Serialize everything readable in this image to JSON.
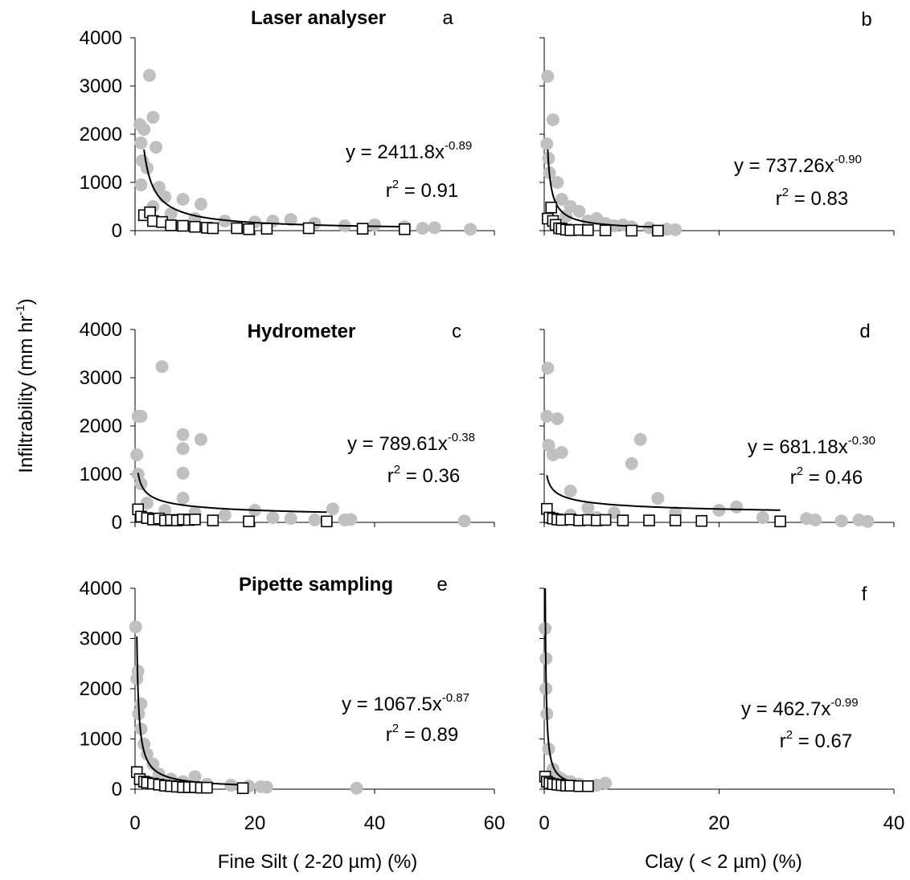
{
  "y_label": {
    "text": "Infiltrability (mm hr",
    "exponent": "-1",
    "close": ")"
  },
  "chart_data": [
    {
      "type": "scatter",
      "title": "Laser analyser",
      "label": "a",
      "xlim": [
        0,
        60
      ],
      "xticks": [
        0,
        20,
        40,
        60
      ],
      "xtick_labels": false,
      "ylim": [
        0,
        4000
      ],
      "yticks": [
        0,
        1000,
        2000,
        3000,
        4000
      ],
      "ytick_labels": true,
      "series": [
        {
          "marker": "circle",
          "color": "#c0c0c0",
          "x": [
            0.8,
            1,
            1.2,
            1,
            1.5,
            2.4,
            3,
            3.5,
            2,
            4,
            5,
            8,
            11,
            3,
            6,
            10,
            15,
            20,
            23,
            26,
            30,
            35,
            40,
            45,
            48,
            50,
            56
          ],
          "values": [
            2200,
            1820,
            1450,
            950,
            2100,
            3220,
            2350,
            1730,
            1300,
            900,
            700,
            650,
            550,
            500,
            350,
            250,
            200,
            180,
            200,
            230,
            150,
            100,
            120,
            80,
            50,
            60,
            30
          ]
        },
        {
          "marker": "square",
          "color": "#000000",
          "x": [
            1.5,
            2.5,
            3,
            4.5,
            6,
            8,
            10,
            12,
            13,
            17,
            19,
            22,
            29,
            38,
            45
          ],
          "values": [
            320,
            380,
            200,
            180,
            110,
            100,
            80,
            60,
            50,
            50,
            30,
            40,
            50,
            40,
            30
          ]
        }
      ],
      "fit": {
        "a": 2411.8,
        "b": -0.89,
        "label": "y = 2411.8x",
        "exponent_label": "-0.89",
        "r2_label": {
          "base": "r",
          "exponent": "2",
          "rest": " = 0.91"
        }
      }
    },
    {
      "type": "scatter",
      "label": "b",
      "xlim": [
        0,
        40
      ],
      "xticks": [
        0,
        20,
        40
      ],
      "xtick_labels": false,
      "ylim": [
        0,
        4000
      ],
      "yticks": [
        0,
        1000,
        2000,
        3000,
        4000
      ],
      "ytick_labels": false,
      "series": [
        {
          "marker": "circle",
          "color": "#c0c0c0",
          "x": [
            0.4,
            0.3,
            0.5,
            0.6,
            1,
            1.5,
            2,
            3,
            4,
            2.5,
            5,
            7,
            8,
            10,
            12,
            14,
            15,
            6,
            9
          ],
          "values": [
            3200,
            1800,
            1500,
            1200,
            2300,
            1000,
            650,
            500,
            400,
            300,
            200,
            150,
            100,
            80,
            60,
            30,
            20,
            250,
            120
          ]
        },
        {
          "marker": "square",
          "color": "#000000",
          "x": [
            0.4,
            0.8,
            1,
            1.3,
            1.7,
            2,
            2.5,
            3,
            4,
            5,
            7,
            10,
            13
          ],
          "values": [
            250,
            480,
            200,
            120,
            50,
            40,
            20,
            10,
            15,
            10,
            5,
            0,
            0
          ]
        }
      ],
      "fit": {
        "a": 737.26,
        "b": -0.9,
        "label": "y = 737.26x",
        "exponent_label": "-0.90",
        "r2_label": {
          "base": "r",
          "exponent": "2",
          "rest": " = 0.83"
        }
      }
    },
    {
      "type": "scatter",
      "title": "Hydrometer",
      "label": "c",
      "xlim": [
        0,
        60
      ],
      "xticks": [
        0,
        20,
        40,
        60
      ],
      "xtick_labels": false,
      "ylim": [
        0,
        4000
      ],
      "yticks": [
        0,
        1000,
        2000,
        3000,
        4000
      ],
      "ytick_labels": true,
      "series": [
        {
          "marker": "circle",
          "color": "#c0c0c0",
          "x": [
            0.5,
            1,
            0.3,
            0.5,
            1,
            4.5,
            8,
            8,
            8,
            8,
            11,
            2,
            5,
            10,
            15,
            20,
            23,
            26,
            30,
            33,
            35,
            36,
            55
          ],
          "values": [
            2200,
            2200,
            1400,
            1000,
            800,
            3230,
            1820,
            1530,
            1020,
            500,
            1720,
            400,
            250,
            200,
            150,
            250,
            100,
            80,
            50,
            280,
            50,
            60,
            30
          ]
        },
        {
          "marker": "square",
          "color": "#000000",
          "x": [
            0.5,
            1,
            2,
            3,
            4,
            5,
            6,
            7,
            8,
            9,
            10,
            13,
            19,
            32
          ],
          "values": [
            270,
            120,
            90,
            60,
            80,
            40,
            50,
            40,
            60,
            50,
            60,
            40,
            20,
            20
          ]
        }
      ],
      "fit": {
        "a": 789.61,
        "b": -0.38,
        "label": "y = 789.61x",
        "exponent_label": "-0.38",
        "r2_label": {
          "base": "r",
          "exponent": "2",
          "rest": " = 0.36"
        }
      }
    },
    {
      "type": "scatter",
      "label": "d",
      "xlim": [
        0,
        40
      ],
      "xticks": [
        0,
        20,
        40
      ],
      "xtick_labels": false,
      "ylim": [
        0,
        4000
      ],
      "yticks": [
        0,
        1000,
        2000,
        3000,
        4000
      ],
      "ytick_labels": false,
      "series": [
        {
          "marker": "circle",
          "color": "#c0c0c0",
          "x": [
            0.4,
            0.3,
            0.5,
            1.5,
            1,
            2,
            3,
            11,
            10,
            13,
            5,
            8,
            15,
            20,
            22,
            25,
            30,
            31,
            34,
            36,
            37,
            3,
            6
          ],
          "values": [
            3200,
            2200,
            1600,
            2150,
            1400,
            1450,
            650,
            1720,
            1220,
            500,
            300,
            200,
            200,
            250,
            320,
            100,
            80,
            50,
            30,
            50,
            20,
            150,
            100
          ]
        },
        {
          "marker": "square",
          "color": "#000000",
          "x": [
            0.3,
            0.6,
            1,
            1.5,
            2,
            3,
            4,
            5,
            6,
            7,
            9,
            12,
            15,
            18,
            27
          ],
          "values": [
            280,
            100,
            80,
            60,
            50,
            60,
            40,
            50,
            40,
            50,
            40,
            40,
            40,
            30,
            20
          ]
        }
      ],
      "fit": {
        "a": 681.18,
        "b": -0.3,
        "label": "y = 681.18x",
        "exponent_label": "-0.30",
        "r2_label": {
          "base": "r",
          "exponent": "2",
          "rest": " = 0.46"
        }
      }
    },
    {
      "type": "scatter",
      "title": "Pipette sampling",
      "label": "e",
      "x_label": "Fine Silt ( 2-20 µm) (%)",
      "xlim": [
        0,
        60
      ],
      "xticks": [
        0,
        20,
        40,
        60
      ],
      "xtick_labels": true,
      "ylim": [
        0,
        4000
      ],
      "yticks": [
        0,
        1000,
        2000,
        3000,
        4000
      ],
      "ytick_labels": true,
      "series": [
        {
          "marker": "circle",
          "color": "#c0c0c0",
          "x": [
            0.1,
            0.3,
            0.5,
            1,
            0.6,
            1,
            1.5,
            2,
            3,
            4,
            6,
            8,
            10,
            12,
            16,
            19,
            21,
            22,
            37
          ],
          "values": [
            3230,
            2200,
            2350,
            1700,
            1500,
            1200,
            900,
            700,
            500,
            300,
            200,
            150,
            250,
            100,
            80,
            60,
            50,
            40,
            20
          ]
        },
        {
          "marker": "square",
          "color": "#000000",
          "x": [
            0.3,
            0.8,
            1.5,
            2,
            3,
            4,
            5,
            6,
            7,
            8,
            9,
            10,
            11,
            12,
            18
          ],
          "values": [
            340,
            200,
            150,
            130,
            110,
            90,
            70,
            60,
            50,
            40,
            40,
            40,
            30,
            30,
            20
          ]
        }
      ],
      "fit": {
        "a": 1067.5,
        "b": -0.87,
        "label": "y = 1067.5x",
        "exponent_label": "-0.87",
        "r2_label": {
          "base": "r",
          "exponent": "2",
          "rest": " = 0.89"
        }
      }
    },
    {
      "type": "scatter",
      "label": "f",
      "x_label": "Clay ( < 2 µm) (%)",
      "xlim": [
        0,
        40
      ],
      "xticks": [
        0,
        20,
        40
      ],
      "xtick_labels": true,
      "ylim": [
        0,
        4000
      ],
      "yticks": [
        0,
        1000,
        2000,
        3000,
        4000
      ],
      "ytick_labels": false,
      "series": [
        {
          "marker": "circle",
          "color": "#c0c0c0",
          "x": [
            0.1,
            0.2,
            0.3,
            0.5,
            1,
            1.5,
            2,
            3,
            4,
            6,
            7,
            0.2
          ],
          "values": [
            3200,
            2600,
            1500,
            800,
            400,
            250,
            200,
            150,
            100,
            80,
            120,
            2000
          ]
        },
        {
          "marker": "square",
          "color": "#000000",
          "x": [
            0.1,
            0.3,
            0.6,
            1,
            1.5,
            2,
            2.5,
            3,
            4,
            5
          ],
          "values": [
            250,
            150,
            120,
            100,
            90,
            80,
            70,
            70,
            60,
            60
          ]
        }
      ],
      "fit": {
        "a": 462.7,
        "b": -0.99,
        "label": "y = 462.7x",
        "exponent_label": "-0.99",
        "r2_label": {
          "base": "r",
          "exponent": "2",
          "rest": " = 0.67"
        }
      }
    }
  ]
}
